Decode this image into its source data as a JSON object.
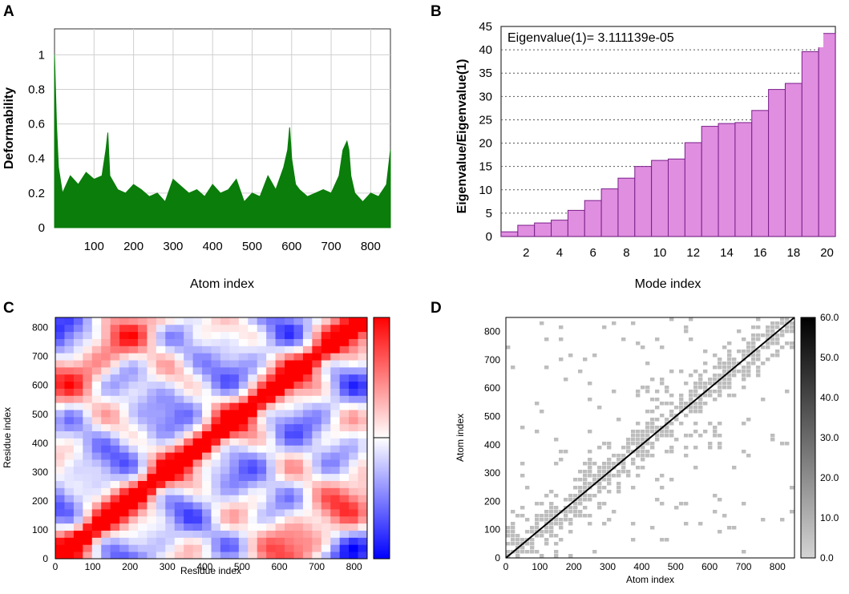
{
  "panels": {
    "a": {
      "letter": "A"
    },
    "b": {
      "letter": "B"
    },
    "c": {
      "letter": "C"
    },
    "d": {
      "letter": "D"
    }
  },
  "chart_data": [
    {
      "id": "A",
      "type": "area",
      "title": "",
      "xlabel": "Atom index",
      "ylabel": "Deformability",
      "xlim": [
        0,
        850
      ],
      "ylim": [
        0,
        1.15
      ],
      "xticks": [
        100,
        200,
        300,
        400,
        500,
        600,
        700,
        800
      ],
      "yticks": [
        0,
        0.2,
        0.4,
        0.6,
        0.8,
        1
      ],
      "color": "#0a7d0a",
      "series": [
        {
          "name": "Deformability",
          "x": [
            0,
            5,
            10,
            20,
            40,
            60,
            80,
            100,
            120,
            130,
            135,
            140,
            160,
            180,
            200,
            220,
            240,
            260,
            280,
            300,
            320,
            340,
            360,
            380,
            400,
            420,
            440,
            460,
            480,
            500,
            520,
            540,
            560,
            580,
            590,
            595,
            600,
            610,
            620,
            640,
            660,
            680,
            700,
            720,
            730,
            740,
            745,
            750,
            760,
            780,
            800,
            820,
            840,
            850
          ],
          "y": [
            1.0,
            0.6,
            0.35,
            0.2,
            0.3,
            0.25,
            0.32,
            0.28,
            0.3,
            0.45,
            0.55,
            0.3,
            0.22,
            0.2,
            0.25,
            0.22,
            0.18,
            0.2,
            0.15,
            0.28,
            0.24,
            0.2,
            0.22,
            0.18,
            0.25,
            0.2,
            0.22,
            0.28,
            0.15,
            0.2,
            0.18,
            0.3,
            0.22,
            0.35,
            0.45,
            0.58,
            0.4,
            0.25,
            0.22,
            0.18,
            0.2,
            0.22,
            0.2,
            0.3,
            0.45,
            0.5,
            0.45,
            0.3,
            0.2,
            0.15,
            0.2,
            0.18,
            0.25,
            0.45
          ]
        }
      ]
    },
    {
      "id": "B",
      "type": "bar",
      "title": "Eigenvalue(1)= 3.111139e-05",
      "xlabel": "Mode index",
      "ylabel": "Eigenvalue/Eigenvalue(1)",
      "xlim": [
        0.5,
        20.5
      ],
      "ylim": [
        0,
        45
      ],
      "xticks": [
        2,
        4,
        6,
        8,
        10,
        12,
        14,
        16,
        18,
        20
      ],
      "yticks": [
        0,
        5,
        10,
        15,
        20,
        25,
        30,
        35,
        40,
        45
      ],
      "color": "#e08ee0",
      "categories": [
        1,
        2,
        3,
        4,
        5,
        6,
        7,
        8,
        9,
        10,
        11,
        12,
        13,
        14,
        15,
        16,
        17,
        18,
        19,
        20
      ],
      "values": [
        1.0,
        2.4,
        2.9,
        3.5,
        5.6,
        7.7,
        10.2,
        12.5,
        15.0,
        16.3,
        16.6,
        20.1,
        23.6,
        24.2,
        24.4,
        27.0,
        31.5,
        32.8,
        39.6,
        43.5
      ]
    },
    {
      "id": "C",
      "type": "heatmap",
      "title": "",
      "xlabel": "Residue index",
      "ylabel": "Residue index",
      "xlim": [
        0,
        835
      ],
      "ylim": [
        0,
        835
      ],
      "xticks": [
        0,
        100,
        200,
        300,
        400,
        500,
        600,
        700,
        800
      ],
      "yticks": [
        0,
        100,
        200,
        300,
        400,
        500,
        600,
        700,
        800
      ],
      "colormap": [
        "#0000ff",
        "#ffffff",
        "#ff0000"
      ]
    },
    {
      "id": "D",
      "type": "heatmap",
      "title": "",
      "xlabel": "Atom index",
      "ylabel": "Atom index",
      "xlim": [
        0,
        850
      ],
      "ylim": [
        0,
        850
      ],
      "xticks": [
        0,
        100,
        200,
        300,
        400,
        500,
        600,
        700,
        800
      ],
      "yticks": [
        0,
        100,
        200,
        300,
        400,
        500,
        600,
        700,
        800
      ],
      "colorbar_ticks": [
        "0.0",
        "10.0",
        "20.0",
        "30.0",
        "40.0",
        "50.0",
        "60.0"
      ],
      "colormap": [
        "#c8c8c8",
        "#000000"
      ]
    }
  ]
}
